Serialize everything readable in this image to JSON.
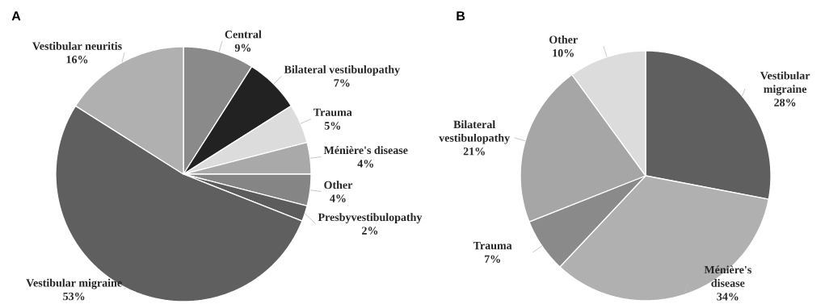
{
  "chart_data": [
    {
      "type": "pie",
      "title": "A",
      "categories": [
        "Central",
        "Bilateral vestibulopathy",
        "Trauma",
        "Ménière's disease",
        "Other",
        "Presbyvestibulopathy",
        "Vestibular migraine",
        "Vestibular neuritis"
      ],
      "values": [
        9,
        7,
        5,
        4,
        4,
        2,
        53,
        16
      ],
      "value_labels": [
        "9%",
        "7%",
        "5%",
        "4%",
        "4%",
        "2%",
        "53%",
        "16%"
      ],
      "colors": [
        "#8a8a8a",
        "#222222",
        "#dcdcdc",
        "#a9a9a9",
        "#858585",
        "#5c5c5c",
        "#5f5f5f",
        "#b0b0b0"
      ]
    },
    {
      "type": "pie",
      "title": "B",
      "categories": [
        "Vestibular migraine",
        "Ménière's disease",
        "Trauma",
        "Bilateral vestibulopathy",
        "Other"
      ],
      "values": [
        28,
        34,
        7,
        21,
        10
      ],
      "value_labels": [
        "28%",
        "34%",
        "7%",
        "21%",
        "10%"
      ],
      "colors": [
        "#5f5f5f",
        "#b0b0b0",
        "#8a8a8a",
        "#a6a6a6",
        "#dcdcdc"
      ]
    }
  ]
}
